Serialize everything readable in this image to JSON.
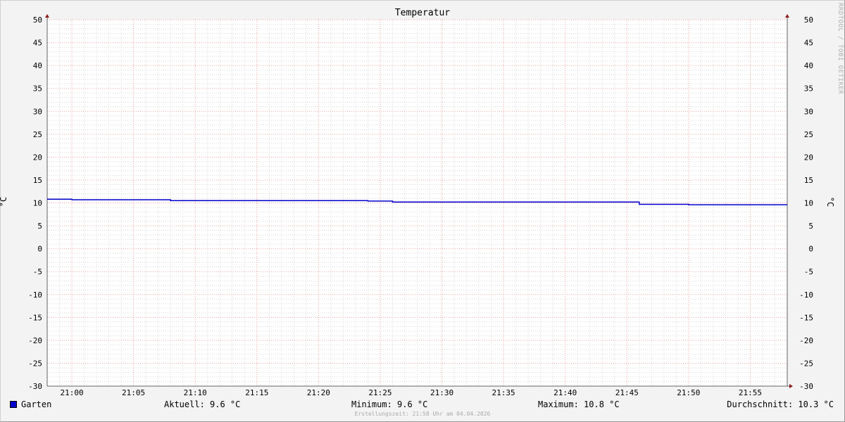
{
  "chart_data": {
    "type": "line",
    "title": "Temperatur",
    "ylabel": "°C",
    "ylim": [
      -30,
      50
    ],
    "yticks": [
      50,
      45,
      40,
      35,
      30,
      25,
      20,
      15,
      10,
      5,
      0,
      -5,
      -10,
      -15,
      -20,
      -25,
      -30
    ],
    "xlim": [
      "20:58",
      "21:58"
    ],
    "xticks": [
      "21:00",
      "21:05",
      "21:10",
      "21:15",
      "21:20",
      "21:25",
      "21:30",
      "21:35",
      "21:40",
      "21:45",
      "21:50",
      "21:55"
    ],
    "grid": true,
    "legend_position": "bottom-left",
    "series": [
      {
        "name": "Garten",
        "color": "#0000cc",
        "step": true,
        "x": [
          "20:58",
          "21:00",
          "21:08",
          "21:24",
          "21:26",
          "21:46",
          "21:50",
          "21:58"
        ],
        "y": [
          10.8,
          10.7,
          10.5,
          10.4,
          10.2,
          9.7,
          9.6,
          9.6
        ]
      }
    ]
  },
  "legend": {
    "name": "Garten",
    "current": "Aktuell: 9.6 °C",
    "minimum": "Minimum: 9.6 °C",
    "maximum": "Maximum: 10.8 °C",
    "average": "Durchschnitt: 10.3 °C"
  },
  "watermark": "RRDTOOL / TOBI OETIKER",
  "footer": "Erstellungszeit: 21:58 Uhr am 04.04.2026"
}
